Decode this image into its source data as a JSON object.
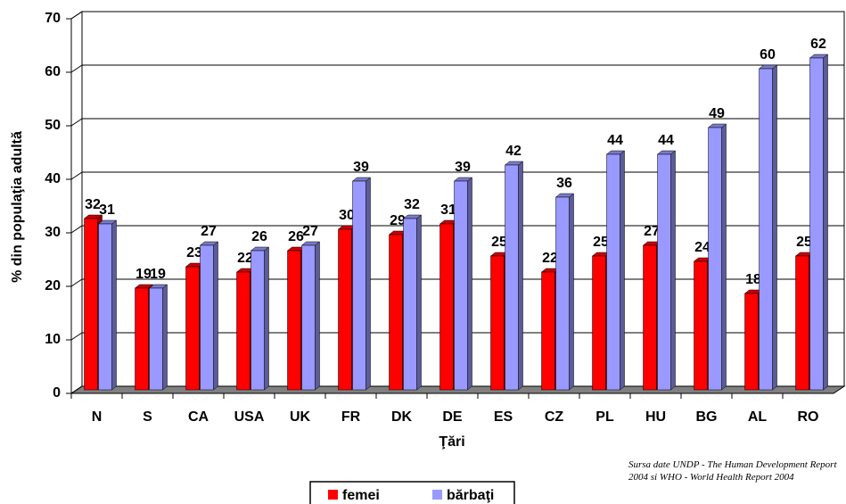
{
  "chart_data": {
    "type": "bar3d",
    "categories": [
      "N",
      "S",
      "CA",
      "USA",
      "UK",
      "FR",
      "DK",
      "DE",
      "ES",
      "CZ",
      "PL",
      "HU",
      "BG",
      "AL",
      "RO"
    ],
    "series": [
      {
        "name": "femei",
        "color": "#ff0000",
        "values": [
          32,
          19,
          23,
          22,
          26,
          30,
          29,
          31,
          25,
          22,
          25,
          27,
          24,
          18,
          25
        ]
      },
      {
        "name": "bărbaţi",
        "color": "#9999ff",
        "values": [
          31,
          19,
          27,
          26,
          27,
          39,
          32,
          39,
          42,
          36,
          44,
          44,
          49,
          60,
          62
        ]
      }
    ],
    "ylim": [
      0,
      70
    ],
    "yticks": [
      0,
      10,
      20,
      30,
      40,
      50,
      60,
      70
    ],
    "grid": true,
    "ylabel": "% din populaţia adultă",
    "xlabel": "Ţări",
    "legend": "bottom",
    "source": "Sursa date UNDP - The Human Development Report 2004 si WHO - World Health Report 2004"
  }
}
